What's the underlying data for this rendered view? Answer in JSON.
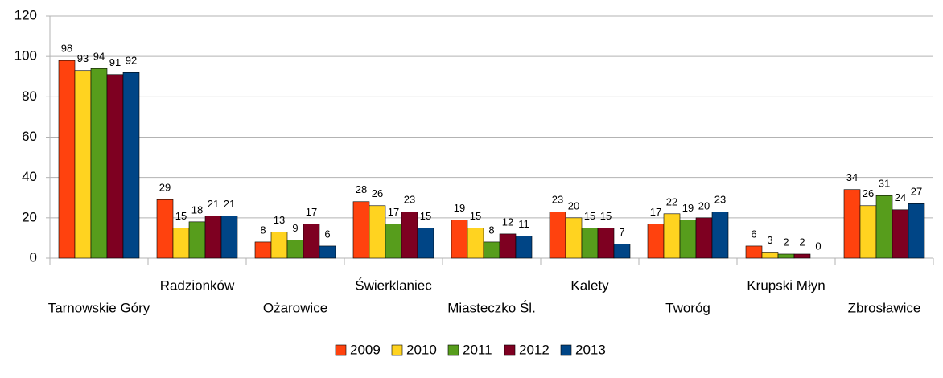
{
  "chart_data": {
    "type": "bar",
    "categories": [
      "Tarnowskie Góry",
      "Radzionków",
      "Ożarowice",
      "Świerklaniec",
      "Miasteczko Śl.",
      "Kalety",
      "Tworóg",
      "Krupski Młyn",
      "Zbrosławice"
    ],
    "series": [
      {
        "name": "2009",
        "color": "#ff420e",
        "values": [
          98,
          29,
          8,
          28,
          19,
          23,
          17,
          6,
          34
        ]
      },
      {
        "name": "2010",
        "color": "#ffd320",
        "values": [
          93,
          15,
          13,
          26,
          15,
          20,
          22,
          3,
          26
        ]
      },
      {
        "name": "2011",
        "color": "#579d1c",
        "values": [
          94,
          18,
          9,
          17,
          8,
          15,
          19,
          2,
          31
        ]
      },
      {
        "name": "2012",
        "color": "#7e0021",
        "values": [
          91,
          21,
          17,
          23,
          12,
          15,
          20,
          2,
          24
        ]
      },
      {
        "name": "2013",
        "color": "#004586",
        "values": [
          92,
          21,
          6,
          15,
          11,
          7,
          23,
          0,
          27
        ]
      }
    ],
    "ylim": [
      0,
      120
    ],
    "yticks": [
      0,
      20,
      40,
      60,
      80,
      100,
      120
    ],
    "grid": true,
    "legend": "bottom"
  }
}
